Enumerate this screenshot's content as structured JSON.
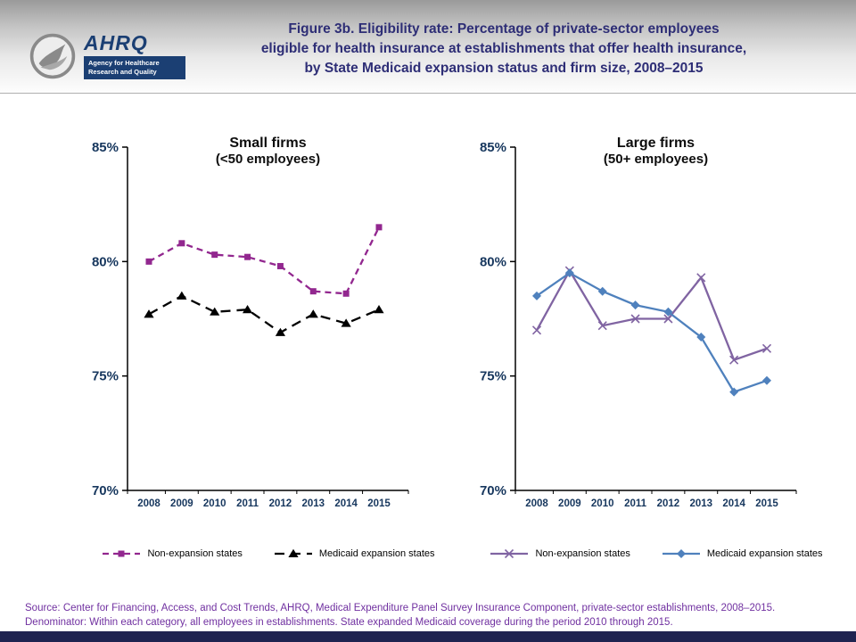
{
  "header": {
    "title_lines": [
      "Figure 3b. Eligibility rate: Percentage of private-sector employees",
      "eligible for health insurance at establishments that offer health insurance,",
      "by State Medicaid expansion status and firm size, 2008–2015"
    ],
    "logo": {
      "hhs_icon": "hhs-eagle-seal",
      "ahrq_wordmark": "AHRQ",
      "ahrq_tagline_line1": "Agency for Healthcare",
      "ahrq_tagline_line2": "Research and Quality"
    }
  },
  "chart_data": [
    {
      "type": "line",
      "title": "Small firms",
      "subtitle": "(<50 employees)",
      "x": [
        "2008",
        "2009",
        "2010",
        "2011",
        "2012",
        "2013",
        "2014",
        "2015"
      ],
      "ylim": [
        70,
        85
      ],
      "y_ticks": [
        70,
        75,
        80,
        85
      ],
      "y_tick_suffix": "%",
      "grid": false,
      "legend_position": "bottom",
      "series": [
        {
          "name": "Non-expansion states",
          "color": "#92278f",
          "line_style": "dashed",
          "dash": "7,5",
          "marker": "square",
          "values": [
            80.0,
            80.8,
            80.3,
            80.2,
            79.8,
            78.7,
            78.6,
            81.5
          ]
        },
        {
          "name": "Medicaid expansion states",
          "color": "#000000",
          "line_style": "dashed",
          "dash": "11,7",
          "marker": "triangle",
          "values": [
            77.7,
            78.5,
            77.8,
            77.9,
            76.9,
            77.7,
            77.3,
            77.9
          ]
        }
      ]
    },
    {
      "type": "line",
      "title": "Large firms",
      "subtitle": "(50+ employees)",
      "x": [
        "2008",
        "2009",
        "2010",
        "2011",
        "2012",
        "2013",
        "2014",
        "2015"
      ],
      "ylim": [
        70,
        85
      ],
      "y_ticks": [
        70,
        75,
        80,
        85
      ],
      "y_tick_suffix": "%",
      "grid": false,
      "legend_position": "bottom",
      "series": [
        {
          "name": "Non-expansion states",
          "color": "#8064a2",
          "line_style": "solid",
          "dash": "",
          "marker": "x",
          "values": [
            77.0,
            79.6,
            77.2,
            77.5,
            77.5,
            79.3,
            75.7,
            76.2
          ]
        },
        {
          "name": "Medicaid expansion states",
          "color": "#4f81bd",
          "line_style": "solid",
          "dash": "",
          "marker": "diamond",
          "values": [
            78.5,
            79.5,
            78.7,
            78.1,
            77.8,
            76.7,
            74.3,
            74.8
          ]
        }
      ]
    }
  ],
  "footer": {
    "source_line1": "Source: Center for Financing, Access, and Cost Trends, AHRQ, Medical Expenditure Panel Survey Insurance Component, private-sector establishments, 2008–2015.",
    "source_line2": "Denominator: Within each category, all employees in establishments. State expanded Medicaid coverage during the period 2010 through 2015."
  },
  "colors": {
    "title_text": "#2e2e76",
    "axis_text": "#17375e",
    "axis_line": "#000000",
    "footer_text": "#7030a0",
    "bottom_bar": "#1f2350"
  }
}
